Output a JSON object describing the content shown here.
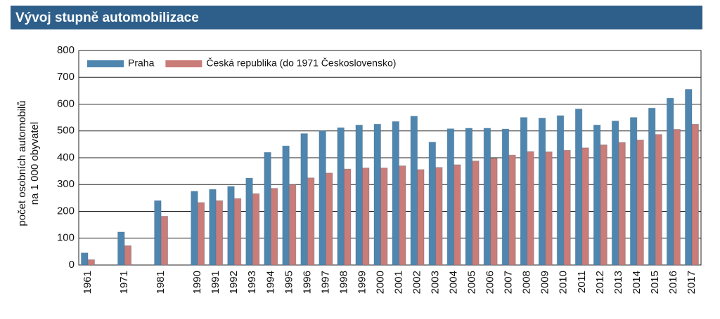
{
  "chart_data": {
    "type": "bar",
    "title": "Vývoj stupně automobilizace",
    "y_label": [
      "počet osobních automobilů",
      "na 1 000 obyvatel"
    ],
    "categories": [
      "1961",
      null,
      "1971",
      null,
      "1981",
      null,
      "1990",
      "1991",
      "1992",
      "1993",
      "1994",
      "1995",
      "1996",
      "1997",
      "1998",
      "1999",
      "2000",
      "2001",
      "2002",
      "2003",
      "2004",
      "2005",
      "2006",
      "2007",
      "2008",
      "2009",
      "2010",
      "2011",
      "2012",
      "2013",
      "2014",
      "2015",
      "2016",
      "2017"
    ],
    "series": [
      {
        "name": "Praha",
        "color": "#4f86b0",
        "values": [
          45,
          null,
          123,
          null,
          240,
          null,
          275,
          282,
          293,
          324,
          420,
          444,
          490,
          500,
          512,
          522,
          525,
          535,
          555,
          458,
          508,
          510,
          510,
          507,
          550,
          548,
          557,
          582,
          522,
          537,
          550,
          585,
          622,
          655
        ]
      },
      {
        "name": "Česká republika (do 1971 Československo)",
        "color": "#c97c78",
        "values": [
          20,
          null,
          72,
          null,
          182,
          null,
          233,
          240,
          248,
          266,
          286,
          300,
          325,
          343,
          358,
          362,
          362,
          370,
          356,
          364,
          374,
          388,
          398,
          410,
          423,
          422,
          428,
          437,
          448,
          457,
          466,
          487,
          506,
          525
        ]
      }
    ],
    "ylim": [
      0,
      800
    ],
    "yticks": [
      0,
      100,
      200,
      300,
      400,
      500,
      600,
      700,
      800
    ],
    "grid": true,
    "legend": "top-left"
  }
}
